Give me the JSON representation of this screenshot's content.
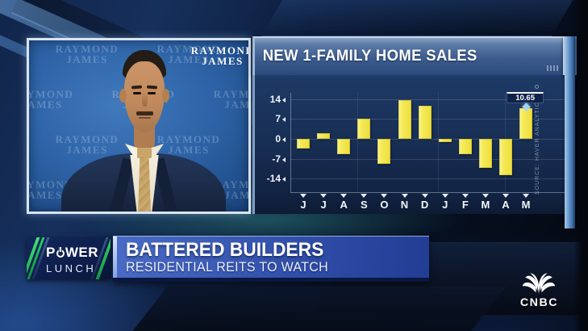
{
  "network": {
    "logo_text": "CNBC"
  },
  "show": {
    "logo_line1_prefix": "P",
    "logo_line1_suffix": "WER",
    "logo_line2": "LUNCH"
  },
  "lower_third": {
    "headline": "BATTERED BUILDERS",
    "subheadline": "RESIDENTIAL REITS TO WATCH"
  },
  "guest_video": {
    "backdrop_line1": "RAYMOND",
    "backdrop_line2": "JAMES"
  },
  "chart_data": {
    "type": "bar",
    "title": "NEW 1-FAMILY HOME SALES",
    "categories": [
      "J",
      "J",
      "A",
      "S",
      "O",
      "N",
      "D",
      "J",
      "F",
      "M",
      "A",
      "M"
    ],
    "values": [
      -3.5,
      1.9,
      -5.3,
      7.0,
      -8.9,
      13.5,
      11.7,
      -1.0,
      -5.5,
      -10.3,
      -12.8,
      10.65
    ],
    "yticks": [
      14,
      7,
      0,
      -7,
      -14
    ],
    "ylim": [
      -17,
      16
    ],
    "xlabel": "",
    "ylabel": "",
    "bar_color": "#f2e44c",
    "background_color": "#182f55",
    "grid": "horizontal-faint",
    "legend": "none",
    "last_value_label": "10.65",
    "source": "SOURCE: HAVER ANALYTICS"
  }
}
